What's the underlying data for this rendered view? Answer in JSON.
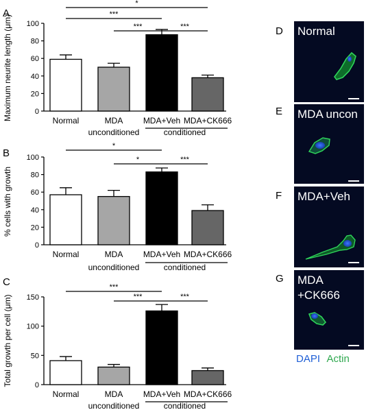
{
  "chart_data": [
    {
      "panel": "A",
      "type": "bar",
      "categories": [
        "Normal",
        "MDA",
        "MDA+Veh",
        "MDA+CK666"
      ],
      "values": [
        59,
        50,
        87,
        38
      ],
      "errors": [
        5,
        4.5,
        6,
        3
      ],
      "bar_colors": [
        "#ffffff",
        "#a6a6a6",
        "#000000",
        "#666666"
      ],
      "ylabel": "Maximum neurite length (μm)",
      "ylim": [
        0,
        100
      ],
      "yticks": [
        "0",
        "20",
        "40",
        "60",
        "80",
        "100"
      ],
      "group_labels": [
        "unconditioned",
        "conditioned"
      ],
      "significance": [
        {
          "from": 0,
          "to": 2,
          "label": "***"
        },
        {
          "from": 0,
          "to": 3,
          "label": "*"
        },
        {
          "from": 1,
          "to": 2,
          "label": "***"
        },
        {
          "from": 2,
          "to": 3,
          "label": "***"
        }
      ]
    },
    {
      "panel": "B",
      "type": "bar",
      "categories": [
        "Normal",
        "MDA",
        "MDA+Veh",
        "MDA+CK666"
      ],
      "values": [
        57,
        55,
        83,
        39
      ],
      "errors": [
        8,
        7,
        4.5,
        6.5
      ],
      "bar_colors": [
        "#ffffff",
        "#a6a6a6",
        "#000000",
        "#666666"
      ],
      "ylabel": "% cells with growth",
      "ylim": [
        0,
        100
      ],
      "yticks": [
        "0",
        "20",
        "40",
        "60",
        "80",
        "100"
      ],
      "group_labels": [
        "unconditioned",
        "conditioned"
      ],
      "significance": [
        {
          "from": 0,
          "to": 2,
          "label": "*"
        },
        {
          "from": 1,
          "to": 2,
          "label": "*"
        },
        {
          "from": 2,
          "to": 3,
          "label": "***"
        }
      ]
    },
    {
      "panel": "C",
      "type": "bar",
      "categories": [
        "Normal",
        "MDA",
        "MDA+Veh",
        "MDA+CK666"
      ],
      "values": [
        41,
        30,
        126,
        24
      ],
      "errors": [
        7,
        4.5,
        11,
        4.5
      ],
      "bar_colors": [
        "#ffffff",
        "#a6a6a6",
        "#000000",
        "#666666"
      ],
      "ylabel": "Total growth per cell (μm)",
      "ylim": [
        0,
        150
      ],
      "yticks": [
        "0",
        "50",
        "100",
        "150"
      ],
      "group_labels": [
        "unconditioned",
        "conditioned"
      ],
      "significance": [
        {
          "from": 0,
          "to": 2,
          "label": "***"
        },
        {
          "from": 1,
          "to": 2,
          "label": "***"
        },
        {
          "from": 2,
          "to": 3,
          "label": "***"
        }
      ]
    }
  ],
  "micrographs": [
    {
      "panel": "D",
      "label_lines": [
        "Normal"
      ]
    },
    {
      "panel": "E",
      "label_lines": [
        "MDA uncon"
      ]
    },
    {
      "panel": "F",
      "label_lines": [
        "MDA+Veh"
      ]
    },
    {
      "panel": "G",
      "label_lines": [
        "MDA",
        "+CK666"
      ]
    }
  ],
  "stain_legend": {
    "dapi": "DAPI",
    "actin": "Actin",
    "dapi_color": "#1f5fd6",
    "actin_color": "#2fa84f"
  }
}
